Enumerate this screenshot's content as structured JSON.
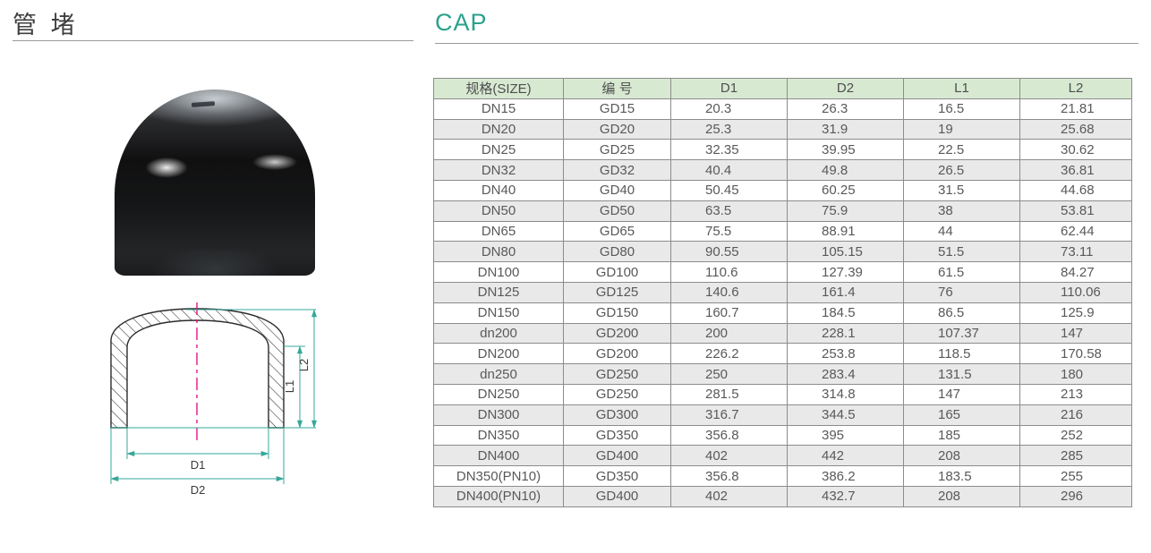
{
  "header": {
    "title_cn": "管 堵",
    "title_en": "CAP",
    "accent_color": "#2ba18c"
  },
  "diagram": {
    "labels": {
      "D1": "D1",
      "D2": "D2",
      "L1": "L1",
      "L2": "L2"
    },
    "colors": {
      "dimension": "#35a89a",
      "centerline": "#e5007f"
    }
  },
  "table": {
    "headers": [
      "规格(SIZE)",
      "编 号",
      "D1",
      "D2",
      "L1",
      "L2"
    ],
    "rows": [
      [
        "DN15",
        "GD15",
        "20.3",
        "26.3",
        "16.5",
        "21.81"
      ],
      [
        "DN20",
        "GD20",
        "25.3",
        "31.9",
        "19",
        "25.68"
      ],
      [
        "DN25",
        "GD25",
        "32.35",
        "39.95",
        "22.5",
        "30.62"
      ],
      [
        "DN32",
        "GD32",
        "40.4",
        "49.8",
        "26.5",
        "36.81"
      ],
      [
        "DN40",
        "GD40",
        "50.45",
        "60.25",
        "31.5",
        "44.68"
      ],
      [
        "DN50",
        "GD50",
        "63.5",
        "75.9",
        "38",
        "53.81"
      ],
      [
        "DN65",
        "GD65",
        "75.5",
        "88.91",
        "44",
        "62.44"
      ],
      [
        "DN80",
        "GD80",
        "90.55",
        "105.15",
        "51.5",
        "73.11"
      ],
      [
        "DN100",
        "GD100",
        "110.6",
        "127.39",
        "61.5",
        "84.27"
      ],
      [
        "DN125",
        "GD125",
        "140.6",
        "161.4",
        "76",
        "110.06"
      ],
      [
        "DN150",
        "GD150",
        "160.7",
        "184.5",
        "86.5",
        "125.9"
      ],
      [
        "dn200",
        "GD200",
        "200",
        "228.1",
        "107.37",
        "147"
      ],
      [
        "DN200",
        "GD200",
        "226.2",
        "253.8",
        "118.5",
        "170.58"
      ],
      [
        "dn250",
        "GD250",
        "250",
        "283.4",
        "131.5",
        "180"
      ],
      [
        "DN250",
        "GD250",
        "281.5",
        "314.8",
        "147",
        "213"
      ],
      [
        "DN300",
        "GD300",
        "316.7",
        "344.5",
        "165",
        "216"
      ],
      [
        "DN350",
        "GD350",
        "356.8",
        "395",
        "185",
        "252"
      ],
      [
        "DN400",
        "GD400",
        "402",
        "442",
        "208",
        "285"
      ],
      [
        "DN350(PN10)",
        "GD350",
        "356.8",
        "386.2",
        "183.5",
        "255"
      ],
      [
        "DN400(PN10)",
        "GD400",
        "402",
        "432.7",
        "208",
        "296"
      ]
    ],
    "style": {
      "header_bg": "#d8e9d1",
      "alt_row_bg": "#e9e9e9",
      "border": "#8c8c8c",
      "text": "#58595b"
    }
  }
}
